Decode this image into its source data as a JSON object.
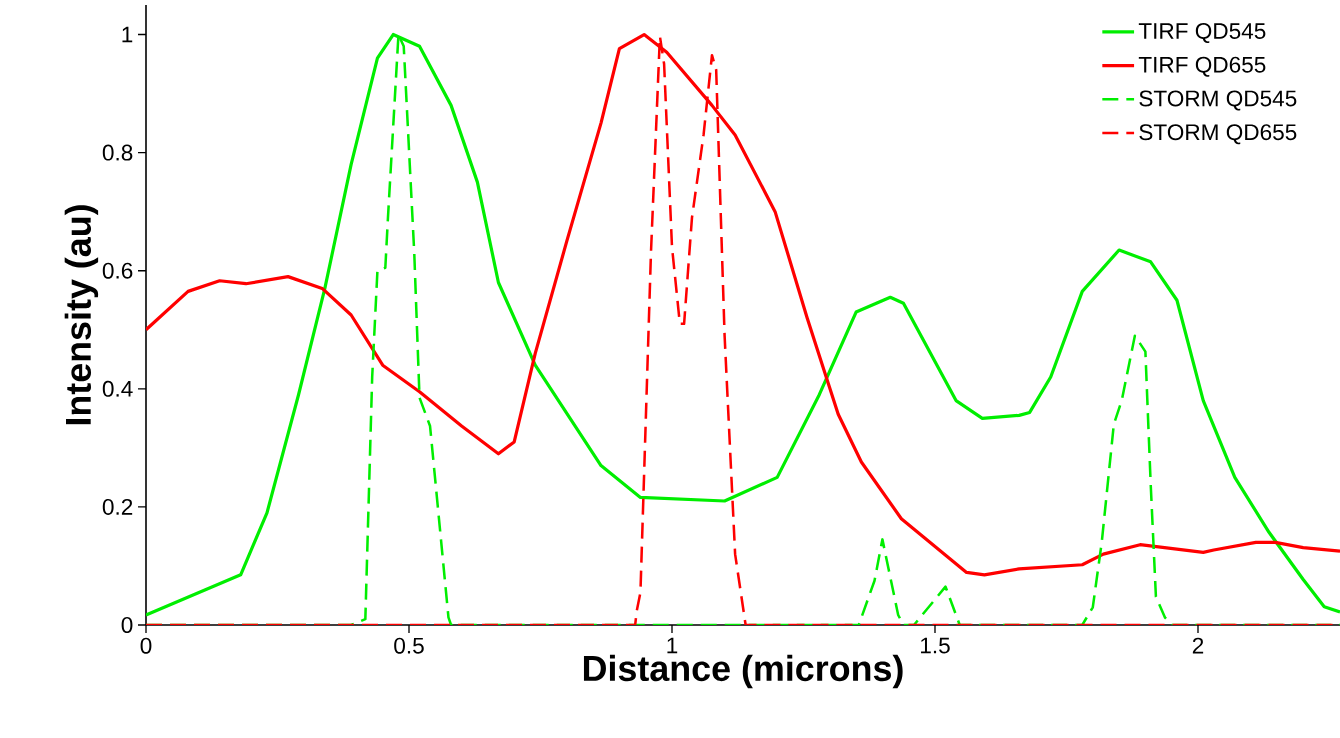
{
  "chart_data": {
    "type": "line",
    "xlabel": "Distance (microns)",
    "ylabel": "Intensity (au)",
    "xlim": [
      0,
      2.27
    ],
    "ylim": [
      0,
      1.05
    ],
    "xticks": [
      0,
      0.5,
      1,
      1.5,
      2
    ],
    "yticks": [
      0,
      0.2,
      0.4,
      0.6,
      0.8,
      1
    ],
    "grid": false,
    "legend": "top right",
    "marker": "none",
    "series": [
      {
        "name": "TIRF QD545",
        "color": "#00ee00",
        "line_style": "solid",
        "x": [
          0,
          0.18,
          0.23,
          0.29,
          0.34,
          0.39,
          0.44,
          0.47,
          0.52,
          0.58,
          0.63,
          0.67,
          0.74,
          0.865,
          0.94,
          1.1,
          1.2,
          1.28,
          1.35,
          1.415,
          1.44,
          1.54,
          1.59,
          1.66,
          1.68,
          1.72,
          1.78,
          1.85,
          1.91,
          1.96,
          2.01,
          2.07,
          2.135,
          2.2,
          2.24,
          2.27
        ],
        "values": [
          0.017,
          0.085,
          0.19,
          0.39,
          0.57,
          0.78,
          0.96,
          1.0,
          0.98,
          0.88,
          0.75,
          0.58,
          0.44,
          0.27,
          0.216,
          0.21,
          0.25,
          0.39,
          0.53,
          0.555,
          0.545,
          0.38,
          0.35,
          0.355,
          0.36,
          0.42,
          0.565,
          0.635,
          0.615,
          0.55,
          0.38,
          0.25,
          0.157,
          0.077,
          0.031,
          0.022
        ]
      },
      {
        "name": "TIRF QD655",
        "color": "#ff0000",
        "line_style": "solid",
        "x": [
          0,
          0.08,
          0.14,
          0.19,
          0.27,
          0.335,
          0.39,
          0.45,
          0.52,
          0.6,
          0.67,
          0.7,
          0.74,
          0.8,
          0.865,
          0.9,
          0.947,
          0.99,
          1.076,
          1.12,
          1.196,
          1.257,
          1.316,
          1.36,
          1.436,
          1.56,
          1.594,
          1.66,
          1.78,
          1.82,
          1.89,
          2.01,
          2.03,
          2.11,
          2.147,
          2.2,
          2.27
        ],
        "values": [
          0.5,
          0.565,
          0.583,
          0.578,
          0.59,
          0.57,
          0.525,
          0.44,
          0.395,
          0.337,
          0.29,
          0.31,
          0.46,
          0.65,
          0.85,
          0.976,
          1.0,
          0.97,
          0.88,
          0.83,
          0.7,
          0.52,
          0.357,
          0.276,
          0.18,
          0.089,
          0.085,
          0.095,
          0.102,
          0.12,
          0.136,
          0.123,
          0.127,
          0.14,
          0.14,
          0.131,
          0.125
        ]
      },
      {
        "name": "STORM QD545",
        "color": "#00ee00",
        "line_style": "dashed",
        "x": [
          0,
          0.39,
          0.417,
          0.43,
          0.44,
          0.455,
          0.46,
          0.48,
          0.49,
          0.51,
          0.52,
          0.54,
          0.575,
          0.58,
          1.355,
          1.385,
          1.4,
          1.43,
          1.44,
          1.46,
          1.52,
          1.547,
          1.78,
          1.8,
          1.817,
          1.84,
          1.855,
          1.88,
          1.9,
          1.91,
          1.92,
          1.937,
          1.95,
          2.27
        ],
        "values": [
          0,
          0,
          0.01,
          0.42,
          0.6,
          0.605,
          0.69,
          1.0,
          0.98,
          0.63,
          0.385,
          0.337,
          0.013,
          0,
          0,
          0.075,
          0.145,
          0.017,
          0,
          0,
          0.065,
          0,
          0,
          0.03,
          0.14,
          0.34,
          0.38,
          0.49,
          0.463,
          0.24,
          0.048,
          0.013,
          0,
          0
        ]
      },
      {
        "name": "STORM QD655",
        "color": "#ff0000",
        "line_style": "dashed",
        "x": [
          0,
          0.93,
          0.933,
          0.94,
          0.96,
          0.977,
          0.985,
          1.0,
          1.015,
          1.023,
          1.038,
          1.06,
          1.076,
          1.084,
          1.1,
          1.12,
          1.14,
          2.27
        ],
        "values": [
          0,
          0,
          0.024,
          0.055,
          0.63,
          0.997,
          0.95,
          0.64,
          0.51,
          0.51,
          0.69,
          0.83,
          0.965,
          0.94,
          0.49,
          0.12,
          0,
          0
        ]
      }
    ]
  }
}
